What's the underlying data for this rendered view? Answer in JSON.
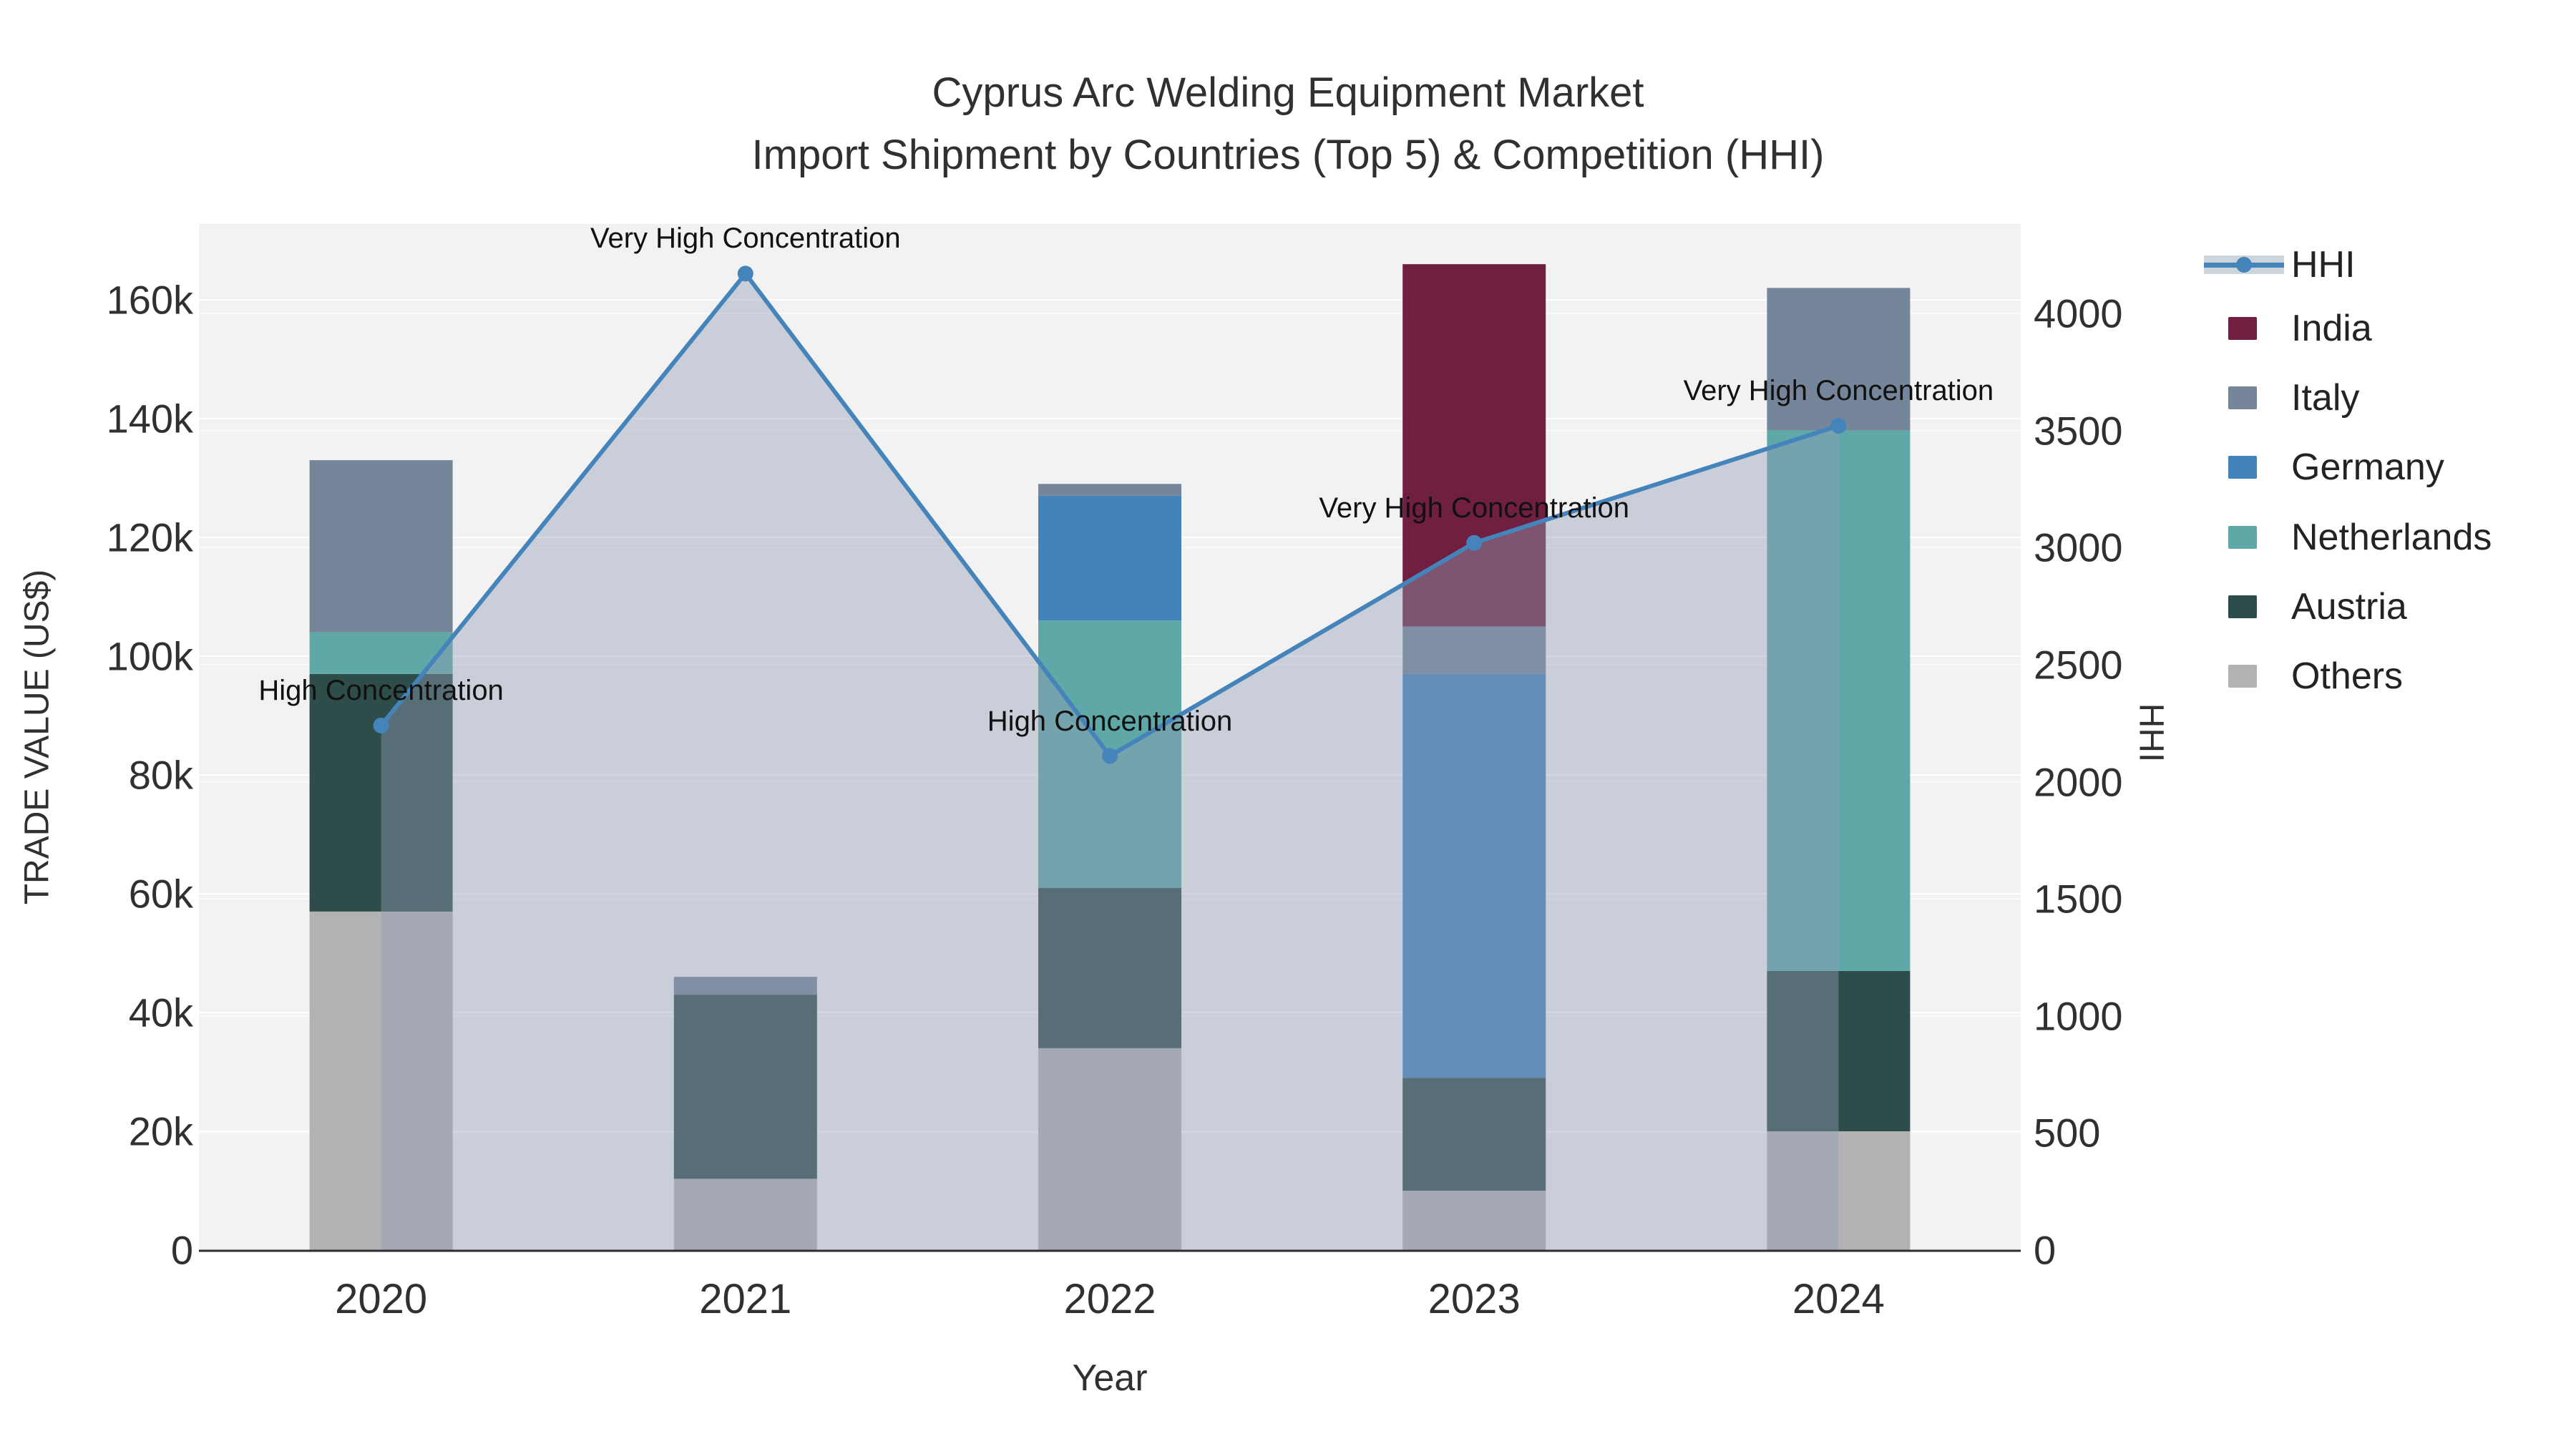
{
  "title": {
    "line1": "Cyprus Arc Welding Equipment Market",
    "line2": "Import Shipment by Countries (Top 5) & Competition (HHI)"
  },
  "axes": {
    "x": {
      "label": "Year",
      "categories": [
        "2020",
        "2021",
        "2022",
        "2023",
        "2024"
      ]
    },
    "y_left": {
      "label": "TRADE VALUE (US$)",
      "tick_labels": [
        "0",
        "20k",
        "40k",
        "60k",
        "80k",
        "100k",
        "120k",
        "140k",
        "160k"
      ],
      "tick_values": [
        0,
        20000,
        40000,
        60000,
        80000,
        100000,
        120000,
        140000,
        160000
      ]
    },
    "y_right": {
      "label": "HHI",
      "tick_labels": [
        "0",
        "500",
        "1000",
        "1500",
        "2000",
        "2500",
        "3000",
        "3500",
        "4000"
      ],
      "tick_values": [
        0,
        500,
        1000,
        1500,
        2000,
        2500,
        3000,
        3500,
        4000
      ]
    }
  },
  "legend": [
    {
      "label": "HHI",
      "type": "line",
      "color": "#4584ba"
    },
    {
      "label": "India",
      "type": "box",
      "color": "#701f41"
    },
    {
      "label": "Italy",
      "type": "box",
      "color": "#75869a"
    },
    {
      "label": "Germany",
      "type": "box",
      "color": "#4383bc"
    },
    {
      "label": "Netherlands",
      "type": "box",
      "color": "#5fa8a8"
    },
    {
      "label": "Austria",
      "type": "box",
      "color": "#2e4d4a"
    },
    {
      "label": "Others",
      "type": "box",
      "color": "#b2b2b2"
    }
  ],
  "chart_data": {
    "type": "combo: stacked-bar (left axis) + line-area (right axis)",
    "categories": [
      "2020",
      "2021",
      "2022",
      "2023",
      "2024"
    ],
    "bar_value_unit": "US$",
    "series": [
      {
        "name": "Others",
        "color": "#b2b2b2",
        "values": [
          57000,
          12000,
          34000,
          10000,
          20000
        ]
      },
      {
        "name": "Austria",
        "color": "#2e4d4a",
        "values": [
          40000,
          31000,
          27000,
          19000,
          27000
        ]
      },
      {
        "name": "Netherlands",
        "color": "#5fa8a8",
        "values": [
          7000,
          0,
          45000,
          0,
          91000
        ]
      },
      {
        "name": "Germany",
        "color": "#4383bc",
        "values": [
          0,
          0,
          21000,
          68000,
          0
        ]
      },
      {
        "name": "Italy",
        "color": "#75869a",
        "values": [
          29000,
          3000,
          2000,
          8000,
          24000
        ]
      },
      {
        "name": "India",
        "color": "#701f41",
        "values": [
          0,
          0,
          0,
          61000,
          0
        ]
      }
    ],
    "line_series": {
      "name": "HHI",
      "color": "#4584ba",
      "area_fill": "rgba(145,158,182,0.42)",
      "values": [
        2240,
        4170,
        2110,
        3020,
        3520
      ]
    },
    "annotations": [
      {
        "category": "2020",
        "text": "High Concentration"
      },
      {
        "category": "2021",
        "text": "Very High Concentration"
      },
      {
        "category": "2022",
        "text": "High Concentration"
      },
      {
        "category": "2023",
        "text": "Very High Concentration"
      },
      {
        "category": "2024",
        "text": "Very High Concentration"
      }
    ],
    "y_left_axis_max_tick": 160000,
    "y_right_axis_max_tick": 4000,
    "grid": "horizontal, both axes, light",
    "legend_position": "right"
  },
  "colors": {
    "plot_background": "#f2f2f2",
    "figure_background": "#ffffff",
    "gridline": "#ffffff",
    "axis_line": "#2f2f2f",
    "hhi_line": "#4584ba",
    "hhi_area": "rgba(145,158,182,0.42)",
    "legend_hhi_band": "#ccd4dc"
  }
}
